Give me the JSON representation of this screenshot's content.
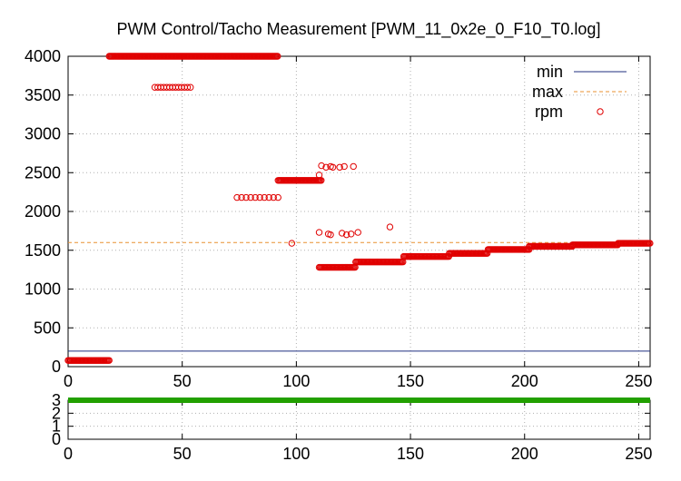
{
  "colors": {
    "min": "#1f2f7f",
    "max": "#e89030",
    "rpm": "#e00000",
    "bottom_series": "#22a000",
    "grid": "#b0b0b0",
    "frame": "#000000"
  },
  "chart_data": [
    {
      "type": "scatter",
      "title": "PWM Control/Tacho Measurement [PWM_11_0x2e_0_F10_T0.log]",
      "xlabel": "",
      "ylabel": "",
      "xlim": [
        0,
        255
      ],
      "ylim": [
        0,
        4000
      ],
      "x_ticks": [
        0,
        50,
        100,
        150,
        200,
        250
      ],
      "y_ticks": [
        0,
        500,
        1000,
        1500,
        2000,
        2500,
        3000,
        3500,
        4000
      ],
      "grid": true,
      "legend_position": "top-right",
      "series": [
        {
          "name": "min",
          "kind": "line",
          "value": 200
        },
        {
          "name": "max",
          "kind": "line",
          "dashed": true,
          "value": 1600
        },
        {
          "name": "rpm",
          "kind": "points",
          "segments": [
            {
              "x_from": 0,
              "x_to": 18,
              "y": 80
            },
            {
              "x_from": 18,
              "x_to": 92,
              "y": 4000
            },
            {
              "x_from": 38,
              "x_to": 54,
              "y": 3600,
              "step": 1.3
            },
            {
              "x_from": 74,
              "x_to": 92,
              "y": 2180,
              "step": 2
            },
            {
              "x_from": 92,
              "x_to": 111,
              "y": 2400
            },
            {
              "x_from": 110,
              "x_to": 126,
              "y": 1280
            },
            {
              "x_from": 126,
              "x_to": 147,
              "y": 1350
            },
            {
              "x_from": 147,
              "x_to": 167,
              "y": 1420
            },
            {
              "x_from": 167,
              "x_to": 184,
              "y": 1460
            },
            {
              "x_from": 184,
              "x_to": 202,
              "y": 1510
            },
            {
              "x_from": 202,
              "x_to": 221,
              "y": 1550
            },
            {
              "x_from": 221,
              "x_to": 241,
              "y": 1570
            },
            {
              "x_from": 241,
              "x_to": 255,
              "y": 1590
            }
          ],
          "points": [
            [
              98,
              1590
            ],
            [
              110,
              1730
            ],
            [
              110,
              2470
            ],
            [
              111,
              2590
            ],
            [
              114,
              1710
            ],
            [
              115,
              1700
            ],
            [
              115,
              2580
            ],
            [
              116,
              2570
            ],
            [
              119,
              2570
            ],
            [
              120,
              1720
            ],
            [
              121,
              2580
            ],
            [
              122,
              1700
            ],
            [
              124,
              1710
            ],
            [
              125,
              2580
            ],
            [
              127,
              1730
            ],
            [
              141,
              1800
            ],
            [
              113,
              2570
            ]
          ]
        }
      ]
    },
    {
      "type": "line",
      "xlim": [
        0,
        255
      ],
      "ylim": [
        0,
        3
      ],
      "x_ticks": [
        0,
        50,
        100,
        150,
        200,
        250
      ],
      "y_ticks": [
        0,
        1,
        2,
        3
      ],
      "grid": true,
      "series": [
        {
          "kind": "thick-line",
          "x": [
            0,
            255
          ],
          "values": [
            3,
            3
          ]
        }
      ]
    }
  ]
}
